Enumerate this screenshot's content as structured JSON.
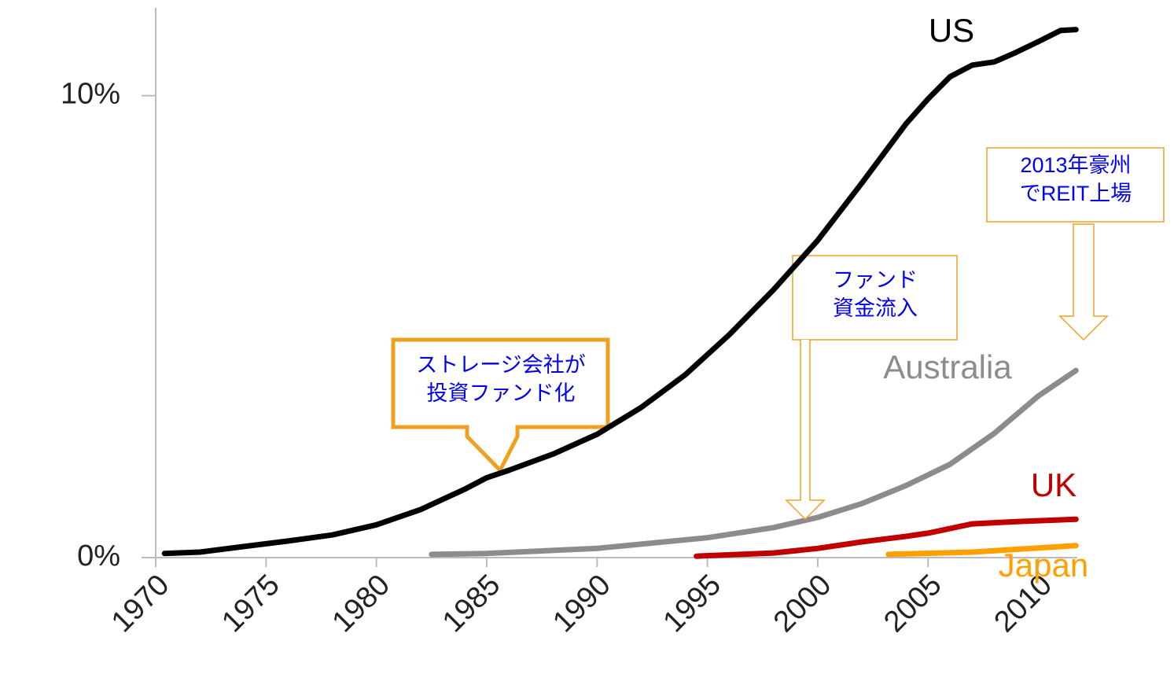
{
  "chart_data": {
    "type": "line",
    "xlim": [
      1970,
      2016
    ],
    "ylim": [
      0,
      11.9
    ],
    "xticks": [
      1970,
      1975,
      1980,
      1985,
      1990,
      1995,
      2000,
      2005,
      2010
    ],
    "yticks": [
      {
        "value": 0,
        "label": "0%"
      },
      {
        "value": 10,
        "label": "10%"
      }
    ],
    "series": [
      {
        "name": "US",
        "color": "#000000",
        "x": [
          1970.4,
          1972,
          1974,
          1976,
          1978,
          1980,
          1982,
          1984,
          1985,
          1986,
          1988,
          1990,
          1992,
          1994,
          1996,
          1998,
          2000,
          2002,
          2004,
          2005,
          2006,
          2007,
          2008,
          2009,
          2010,
          2011,
          2011.7
        ],
        "values": [
          0.09,
          0.12,
          0.24,
          0.36,
          0.49,
          0.71,
          1.04,
          1.48,
          1.73,
          1.89,
          2.24,
          2.67,
          3.25,
          3.96,
          4.83,
          5.8,
          6.87,
          8.11,
          9.39,
          9.93,
          10.41,
          10.66,
          10.73,
          10.94,
          11.17,
          11.41,
          11.43
        ]
      },
      {
        "name": "Australia",
        "color": "#8c8c8c",
        "x": [
          1982.5,
          1985,
          1990,
          1995,
          1998,
          2000,
          2002,
          2004,
          2006,
          2008,
          2010,
          2011.7
        ],
        "values": [
          0.07,
          0.09,
          0.2,
          0.43,
          0.65,
          0.87,
          1.17,
          1.56,
          2.02,
          2.69,
          3.5,
          4.05
        ]
      },
      {
        "name": "UK",
        "color": "#c00000",
        "x": [
          1994.5,
          1998,
          2000,
          2002,
          2004,
          2005,
          2007,
          2009,
          2011.7
        ],
        "values": [
          0.03,
          0.1,
          0.2,
          0.34,
          0.46,
          0.53,
          0.73,
          0.78,
          0.83
        ]
      },
      {
        "name": "Japan",
        "color": "#ffa000",
        "x": [
          2003.2,
          2007,
          2011.7
        ],
        "values": [
          0.07,
          0.12,
          0.26
        ]
      }
    ],
    "annotations": [
      {
        "lines": [
          "ストレージ会社が",
          "投資ファンド化"
        ]
      },
      {
        "lines": [
          "ファンド",
          "資金流入"
        ]
      },
      {
        "lines": [
          "2013年豪州",
          "でREIT上場"
        ]
      }
    ]
  }
}
